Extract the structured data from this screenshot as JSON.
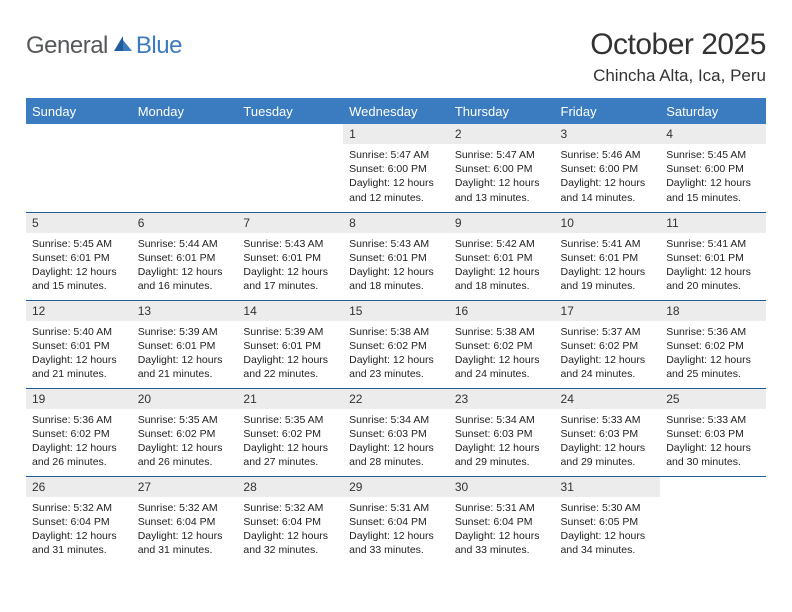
{
  "brand": {
    "general": "General",
    "blue": "Blue"
  },
  "title": "October 2025",
  "location": "Chincha Alta, Ica, Peru",
  "colors": {
    "header_bg": "#3b7bbf",
    "header_text": "#ffffff",
    "daynum_bg": "#ececec",
    "border": "#1f5c99",
    "text": "#333333"
  },
  "day_headers": [
    "Sunday",
    "Monday",
    "Tuesday",
    "Wednesday",
    "Thursday",
    "Friday",
    "Saturday"
  ],
  "weeks": [
    [
      null,
      null,
      null,
      {
        "n": "1",
        "sr": "5:47 AM",
        "ss": "6:00 PM",
        "dl": "12 hours and 12 minutes."
      },
      {
        "n": "2",
        "sr": "5:47 AM",
        "ss": "6:00 PM",
        "dl": "12 hours and 13 minutes."
      },
      {
        "n": "3",
        "sr": "5:46 AM",
        "ss": "6:00 PM",
        "dl": "12 hours and 14 minutes."
      },
      {
        "n": "4",
        "sr": "5:45 AM",
        "ss": "6:00 PM",
        "dl": "12 hours and 15 minutes."
      }
    ],
    [
      {
        "n": "5",
        "sr": "5:45 AM",
        "ss": "6:01 PM",
        "dl": "12 hours and 15 minutes."
      },
      {
        "n": "6",
        "sr": "5:44 AM",
        "ss": "6:01 PM",
        "dl": "12 hours and 16 minutes."
      },
      {
        "n": "7",
        "sr": "5:43 AM",
        "ss": "6:01 PM",
        "dl": "12 hours and 17 minutes."
      },
      {
        "n": "8",
        "sr": "5:43 AM",
        "ss": "6:01 PM",
        "dl": "12 hours and 18 minutes."
      },
      {
        "n": "9",
        "sr": "5:42 AM",
        "ss": "6:01 PM",
        "dl": "12 hours and 18 minutes."
      },
      {
        "n": "10",
        "sr": "5:41 AM",
        "ss": "6:01 PM",
        "dl": "12 hours and 19 minutes."
      },
      {
        "n": "11",
        "sr": "5:41 AM",
        "ss": "6:01 PM",
        "dl": "12 hours and 20 minutes."
      }
    ],
    [
      {
        "n": "12",
        "sr": "5:40 AM",
        "ss": "6:01 PM",
        "dl": "12 hours and 21 minutes."
      },
      {
        "n": "13",
        "sr": "5:39 AM",
        "ss": "6:01 PM",
        "dl": "12 hours and 21 minutes."
      },
      {
        "n": "14",
        "sr": "5:39 AM",
        "ss": "6:01 PM",
        "dl": "12 hours and 22 minutes."
      },
      {
        "n": "15",
        "sr": "5:38 AM",
        "ss": "6:02 PM",
        "dl": "12 hours and 23 minutes."
      },
      {
        "n": "16",
        "sr": "5:38 AM",
        "ss": "6:02 PM",
        "dl": "12 hours and 24 minutes."
      },
      {
        "n": "17",
        "sr": "5:37 AM",
        "ss": "6:02 PM",
        "dl": "12 hours and 24 minutes."
      },
      {
        "n": "18",
        "sr": "5:36 AM",
        "ss": "6:02 PM",
        "dl": "12 hours and 25 minutes."
      }
    ],
    [
      {
        "n": "19",
        "sr": "5:36 AM",
        "ss": "6:02 PM",
        "dl": "12 hours and 26 minutes."
      },
      {
        "n": "20",
        "sr": "5:35 AM",
        "ss": "6:02 PM",
        "dl": "12 hours and 26 minutes."
      },
      {
        "n": "21",
        "sr": "5:35 AM",
        "ss": "6:02 PM",
        "dl": "12 hours and 27 minutes."
      },
      {
        "n": "22",
        "sr": "5:34 AM",
        "ss": "6:03 PM",
        "dl": "12 hours and 28 minutes."
      },
      {
        "n": "23",
        "sr": "5:34 AM",
        "ss": "6:03 PM",
        "dl": "12 hours and 29 minutes."
      },
      {
        "n": "24",
        "sr": "5:33 AM",
        "ss": "6:03 PM",
        "dl": "12 hours and 29 minutes."
      },
      {
        "n": "25",
        "sr": "5:33 AM",
        "ss": "6:03 PM",
        "dl": "12 hours and 30 minutes."
      }
    ],
    [
      {
        "n": "26",
        "sr": "5:32 AM",
        "ss": "6:04 PM",
        "dl": "12 hours and 31 minutes."
      },
      {
        "n": "27",
        "sr": "5:32 AM",
        "ss": "6:04 PM",
        "dl": "12 hours and 31 minutes."
      },
      {
        "n": "28",
        "sr": "5:32 AM",
        "ss": "6:04 PM",
        "dl": "12 hours and 32 minutes."
      },
      {
        "n": "29",
        "sr": "5:31 AM",
        "ss": "6:04 PM",
        "dl": "12 hours and 33 minutes."
      },
      {
        "n": "30",
        "sr": "5:31 AM",
        "ss": "6:04 PM",
        "dl": "12 hours and 33 minutes."
      },
      {
        "n": "31",
        "sr": "5:30 AM",
        "ss": "6:05 PM",
        "dl": "12 hours and 34 minutes."
      },
      null
    ]
  ],
  "labels": {
    "sunrise": "Sunrise: ",
    "sunset": "Sunset: ",
    "daylight": "Daylight: "
  }
}
